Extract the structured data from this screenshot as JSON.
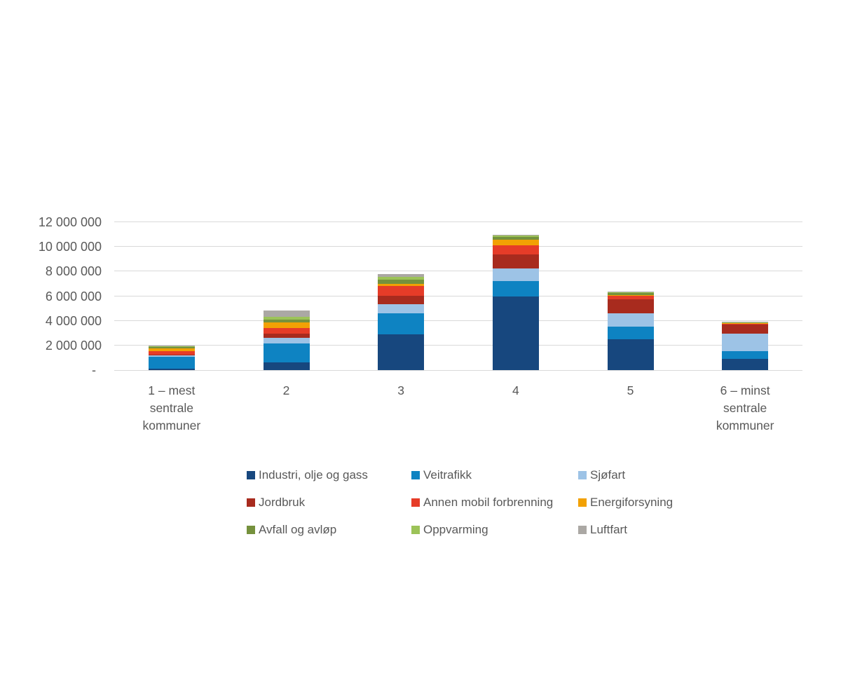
{
  "page": {
    "background": "#ffffff",
    "text_color": "#595959",
    "gridline_color": "#d9d9d9"
  },
  "chart_data": {
    "type": "bar",
    "stacked": true,
    "title": "",
    "xlabel": "",
    "ylabel": "",
    "grid": true,
    "legend_position": "bottom",
    "ylim": [
      0,
      12000000
    ],
    "y_tick_values": [
      0,
      2000000,
      4000000,
      6000000,
      8000000,
      10000000,
      12000000
    ],
    "y_tick_labels": [
      "-",
      "2 000 000",
      "4 000 000",
      "6 000 000",
      "8 000 000",
      "10 000 000",
      "12 000 000"
    ],
    "categories": [
      "1 – mest sentrale kommuner",
      "2",
      "3",
      "4",
      "5",
      "6 – minst sentrale kommuner"
    ],
    "category_label_lines": [
      [
        "1 – mest",
        "sentrale",
        "kommuner"
      ],
      [
        "2"
      ],
      [
        "3"
      ],
      [
        "4"
      ],
      [
        "5"
      ],
      [
        "6 – minst",
        "sentrale",
        "kommuner"
      ]
    ],
    "series": [
      {
        "name": "Industri, olje og gass",
        "color": "#17477e",
        "values": [
          100000,
          650000,
          2900000,
          6000000,
          2500000,
          910000
        ]
      },
      {
        "name": "Veitrafikk",
        "color": "#0e83c2",
        "values": [
          1000000,
          1500000,
          1700000,
          1200000,
          1050000,
          600000
        ]
      },
      {
        "name": "Sjøfart",
        "color": "#9dc3e6",
        "values": [
          70000,
          450000,
          750000,
          1050000,
          1050000,
          1430000
        ]
      },
      {
        "name": "Jordbruk",
        "color": "#a82b1e",
        "values": [
          80000,
          350000,
          700000,
          1150000,
          1150000,
          750000
        ]
      },
      {
        "name": "Annen mobil forbrenning",
        "color": "#e63c28",
        "values": [
          280000,
          450000,
          750000,
          700000,
          300000,
          120000
        ]
      },
      {
        "name": "Energiforsyning",
        "color": "#f2a104",
        "values": [
          250000,
          450000,
          200000,
          500000,
          50000,
          20000
        ]
      },
      {
        "name": "Avfall og avløp",
        "color": "#75913d",
        "values": [
          120000,
          250000,
          350000,
          220000,
          150000,
          40000
        ]
      },
      {
        "name": "Oppvarming",
        "color": "#9cc358",
        "values": [
          60000,
          250000,
          220000,
          100000,
          80000,
          20000
        ]
      },
      {
        "name": "Luftfart",
        "color": "#aba8a4",
        "values": [
          20000,
          500000,
          250000,
          40000,
          20000,
          10000
        ]
      }
    ],
    "legend_rows": [
      [
        "Industri, olje og gass",
        "Veitrafikk",
        "Sjøfart"
      ],
      [
        "Jordbruk",
        "Annen mobil forbrenning",
        "Energiforsyning"
      ],
      [
        "Avfall og avløp",
        "Oppvarming",
        "Luftfart"
      ]
    ]
  }
}
